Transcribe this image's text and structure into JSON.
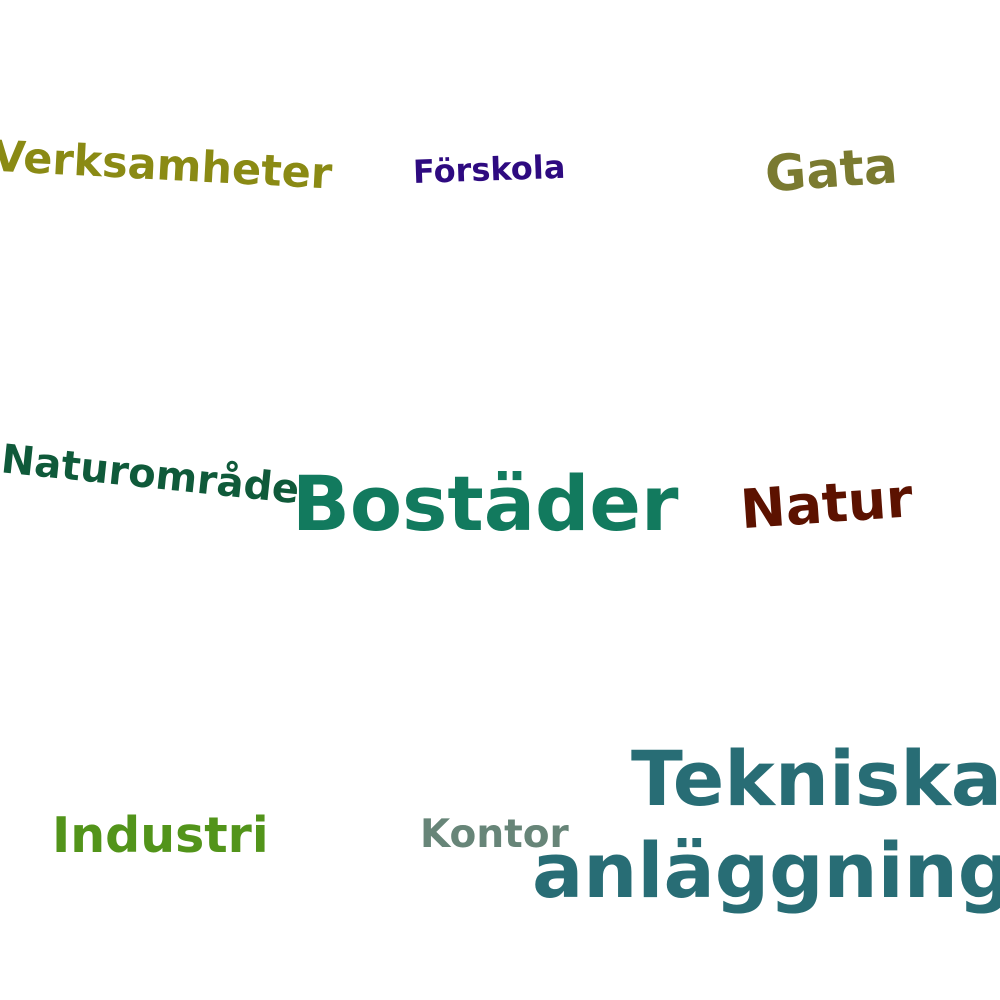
{
  "words": [
    {
      "text": "Verksamheter",
      "color": "#8a8a14"
    },
    {
      "text": "Förskola",
      "color": "#2e0a80"
    },
    {
      "text": "Gata",
      "color": "#7a7a30"
    },
    {
      "text": "Naturområde",
      "color": "#0f5a3a"
    },
    {
      "text": "Bostäder",
      "color": "#127a5e"
    },
    {
      "text": "Natur",
      "color": "#5c1200"
    },
    {
      "text": "Industri",
      "color": "#52941a"
    },
    {
      "text": "Kontor",
      "color": "#678578"
    },
    {
      "text": "Tekniska",
      "color": "#286d75"
    },
    {
      "text": "anläggning",
      "color": "#286d75"
    }
  ]
}
